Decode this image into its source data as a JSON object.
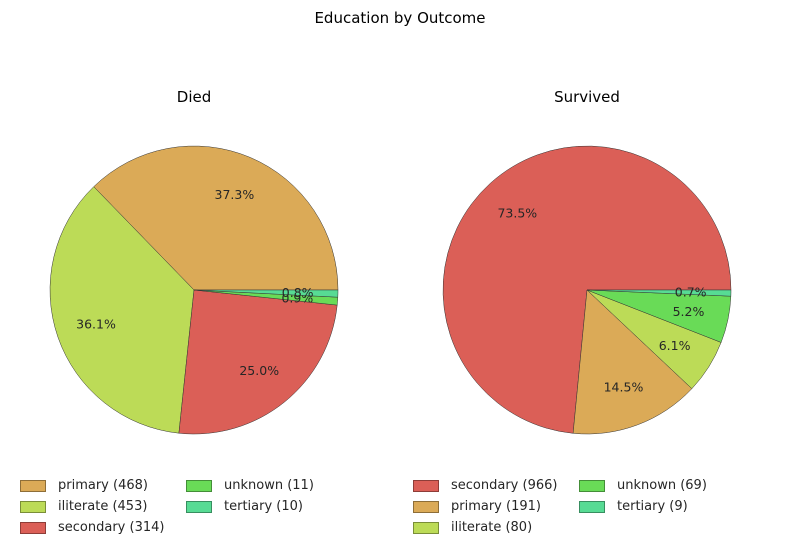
{
  "figure": {
    "title": "Education by Outcome"
  },
  "chart_data": [
    {
      "type": "pie",
      "title": "Died",
      "slices": [
        {
          "label": "primary",
          "value": 468,
          "pct_label": "37.3%",
          "color": "#dbaa57"
        },
        {
          "label": "iliterate",
          "value": 453,
          "pct_label": "36.1%",
          "color": "#bcdb57"
        },
        {
          "label": "secondary",
          "value": 314,
          "pct_label": "25.0%",
          "color": "#db5f57"
        },
        {
          "label": "unknown",
          "value": 11,
          "pct_label": "0.9%",
          "color": "#69db57"
        },
        {
          "label": "tertiary",
          "value": 10,
          "pct_label": "0.8%",
          "color": "#57db94"
        }
      ],
      "legend": [
        "primary (468)",
        "iliterate (453)",
        "secondary (314)",
        "unknown (11)",
        "tertiary (10)"
      ]
    },
    {
      "type": "pie",
      "title": "Survived",
      "slices": [
        {
          "label": "secondary",
          "value": 966,
          "pct_label": "73.5%",
          "color": "#db5f57"
        },
        {
          "label": "primary",
          "value": 191,
          "pct_label": "14.5%",
          "color": "#dbaa57"
        },
        {
          "label": "iliterate",
          "value": 80,
          "pct_label": "6.1%",
          "color": "#bcdb57"
        },
        {
          "label": "unknown",
          "value": 69,
          "pct_label": "5.2%",
          "color": "#69db57"
        },
        {
          "label": "tertiary",
          "value": 9,
          "pct_label": "0.7%",
          "color": "#57db94"
        }
      ],
      "legend": [
        "secondary (966)",
        "primary (191)",
        "iliterate (80)",
        "unknown (69)",
        "tertiary (9)"
      ]
    }
  ]
}
